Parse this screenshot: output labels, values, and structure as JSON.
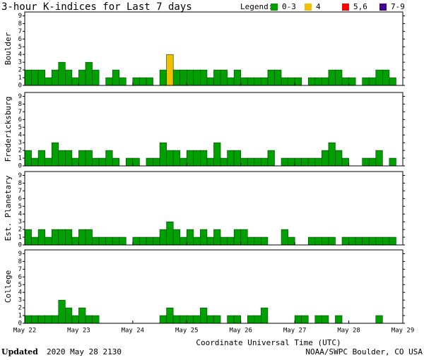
{
  "title": "3-hour K-indices for Last 7 days",
  "legend": {
    "label": "Legend:",
    "items": [
      {
        "label": "0-3",
        "color": "#00a000"
      },
      {
        "label": "4",
        "color": "#f0c000"
      },
      {
        "label": "5,6",
        "color": "#ff0000"
      },
      {
        "label": "7-9",
        "color": "#400090"
      }
    ]
  },
  "x_axis": {
    "label": "Coordinate Universal Time (UTC)",
    "ticks": [
      "May 22",
      "May 23",
      "May 24",
      "May 25",
      "May 26",
      "May 27",
      "May 28",
      "May 29"
    ]
  },
  "footer": {
    "updated_label": "Updated",
    "updated": "2020 May 28 2130",
    "credit": "NOAA/SWPC Boulder, CO USA"
  },
  "chart_data": [
    {
      "type": "bar",
      "ylabel": "Boulder",
      "ylim": [
        0,
        9.5
      ],
      "yticks": [
        0,
        1,
        2,
        3,
        4,
        5,
        6,
        7,
        8,
        9
      ],
      "values": [
        2,
        2,
        2,
        1,
        2,
        3,
        2,
        1,
        2,
        3,
        2,
        0,
        1,
        2,
        1,
        0,
        1,
        1,
        1,
        0,
        2,
        4,
        2,
        2,
        2,
        2,
        2,
        1,
        2,
        2,
        1,
        2,
        1,
        1,
        1,
        1,
        2,
        2,
        1,
        1,
        1,
        0,
        1,
        1,
        1,
        2,
        2,
        1,
        1,
        0,
        1,
        1,
        2,
        2,
        1,
        0
      ]
    },
    {
      "type": "bar",
      "ylabel": "Fredericksburg",
      "ylim": [
        0,
        9.5
      ],
      "yticks": [
        0,
        1,
        2,
        3,
        4,
        5,
        6,
        7,
        8,
        9
      ],
      "values": [
        2,
        1,
        2,
        1,
        3,
        2,
        2,
        1,
        2,
        2,
        1,
        1,
        2,
        1,
        0,
        1,
        1,
        0,
        1,
        1,
        3,
        2,
        2,
        1,
        2,
        2,
        2,
        1,
        3,
        1,
        2,
        2,
        1,
        1,
        1,
        1,
        2,
        0,
        1,
        1,
        1,
        1,
        1,
        1,
        2,
        3,
        2,
        1,
        0,
        0,
        1,
        1,
        2,
        0,
        1,
        0
      ]
    },
    {
      "type": "bar",
      "ylabel": "Est. Planetary",
      "ylim": [
        0,
        9.5
      ],
      "yticks": [
        0,
        1,
        2,
        3,
        4,
        5,
        6,
        7,
        8,
        9
      ],
      "values": [
        2,
        1,
        2,
        1,
        2,
        2,
        2,
        1,
        2,
        2,
        1,
        1,
        1,
        1,
        1,
        0,
        1,
        1,
        1,
        1,
        2,
        3,
        2,
        1,
        2,
        1,
        2,
        1,
        2,
        1,
        1,
        2,
        2,
        1,
        1,
        1,
        0,
        0,
        2,
        1,
        0,
        0,
        1,
        1,
        1,
        1,
        0,
        1,
        1,
        1,
        1,
        1,
        1,
        1,
        1,
        0
      ]
    },
    {
      "type": "bar",
      "ylabel": "College",
      "ylim": [
        0,
        9.5
      ],
      "yticks": [
        0,
        1,
        2,
        3,
        4,
        5,
        6,
        7,
        8,
        9
      ],
      "values": [
        1,
        1,
        1,
        1,
        1,
        3,
        2,
        1,
        2,
        1,
        1,
        0,
        0,
        0,
        0,
        0,
        0,
        0,
        0,
        0,
        1,
        2,
        1,
        1,
        1,
        1,
        2,
        1,
        1,
        0,
        1,
        1,
        0,
        1,
        1,
        2,
        0,
        0,
        0,
        0,
        1,
        1,
        0,
        1,
        1,
        0,
        1,
        0,
        0,
        0,
        0,
        0,
        1,
        0,
        0,
        0
      ]
    }
  ]
}
